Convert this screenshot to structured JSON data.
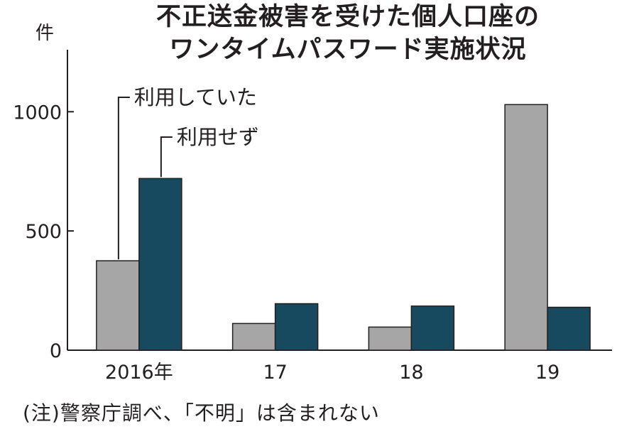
{
  "chart_data": {
    "type": "bar",
    "title": "不正送金被害を受けた個人口座の",
    "subtitle": "ワンタイムパスワード実施状況",
    "ylabel": "件",
    "categories": [
      "2016年",
      "17",
      "18",
      "19"
    ],
    "series": [
      {
        "name": "利用していた",
        "values": [
          375,
          112,
          97,
          1030
        ],
        "color": "#a6a6a6"
      },
      {
        "name": "利用せず",
        "values": [
          720,
          195,
          185,
          180
        ],
        "color": "#174a5e"
      }
    ],
    "yticks": [
      0,
      500,
      1000
    ],
    "ylim": [
      0,
      1260
    ],
    "legend": "annotation-lines",
    "grid": false
  },
  "note": "(注)警察庁調べ、「不明」は含まれない"
}
